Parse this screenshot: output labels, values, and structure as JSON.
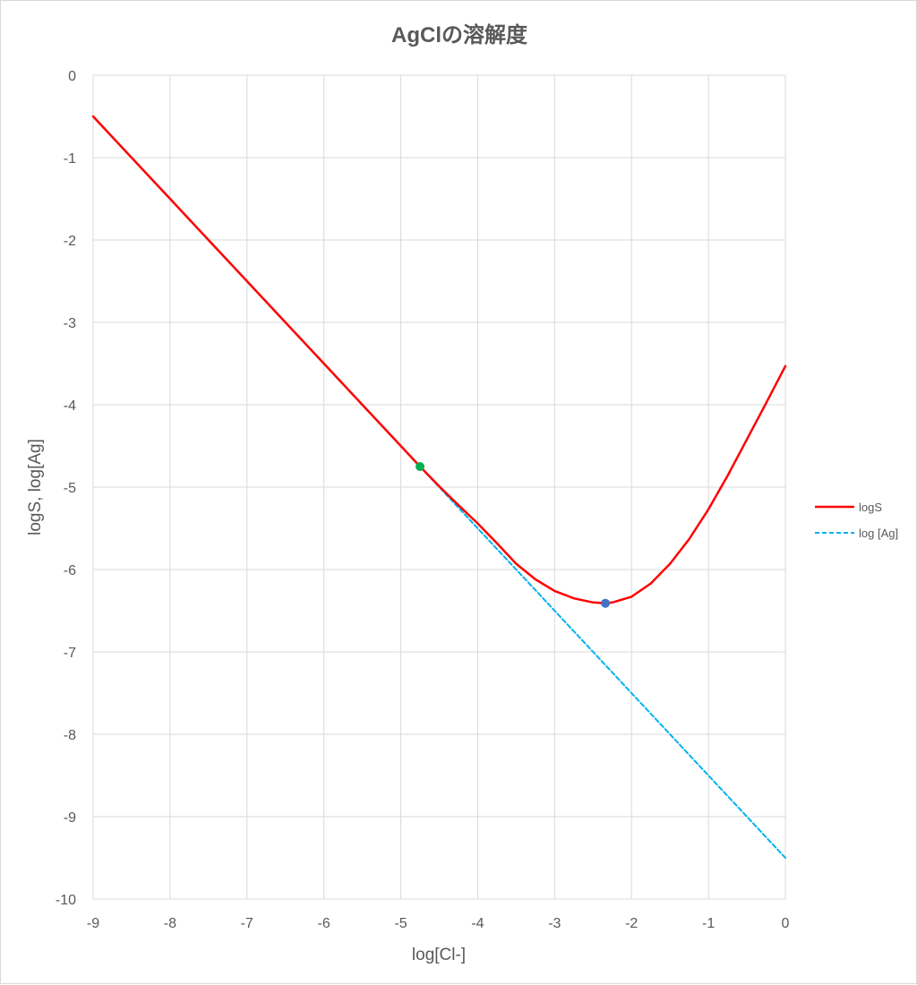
{
  "chart_data": {
    "type": "line",
    "title": "AgClの溶解度",
    "xlabel": "log[Cl-]",
    "ylabel": "logS, log[Ag]",
    "xlim": [
      -9,
      0
    ],
    "ylim": [
      -10,
      0
    ],
    "x_ticks": [
      -9,
      -8,
      -7,
      -6,
      -5,
      -4,
      -3,
      -2,
      -1,
      0
    ],
    "y_ticks": [
      0,
      -1,
      -2,
      -3,
      -4,
      -5,
      -6,
      -7,
      -8,
      -9,
      -10
    ],
    "grid": true,
    "legend_position": "right",
    "x": [
      -9,
      -8.5,
      -8,
      -7.5,
      -7,
      -6.5,
      -6,
      -5.5,
      -5,
      -4.75,
      -4.5,
      -4.25,
      -4,
      -3.75,
      -3.5,
      -3.25,
      -3,
      -2.75,
      -2.5,
      -2.34,
      -2.25,
      -2,
      -1.75,
      -1.5,
      -1.25,
      -1,
      -0.75,
      -0.5,
      -0.25,
      0
    ],
    "series": [
      {
        "name": "logS",
        "color": "#ff0000",
        "dash": "solid",
        "values": [
          -0.5,
          -1.0,
          -1.5,
          -2.0,
          -2.5,
          -3.0,
          -3.5,
          -4.0,
          -4.5,
          -4.75,
          -4.99,
          -5.22,
          -5.44,
          -5.68,
          -5.93,
          -6.12,
          -6.26,
          -6.35,
          -6.4,
          -6.41,
          -6.4,
          -6.33,
          -6.17,
          -5.93,
          -5.63,
          -5.27,
          -4.86,
          -4.42,
          -3.98,
          -3.53
        ]
      },
      {
        "name": "log [Ag]",
        "color": "#00b0f0",
        "dash": "dashed",
        "values": [
          -0.5,
          -1.0,
          -1.5,
          -2.0,
          -2.5,
          -3.0,
          -3.5,
          -4.0,
          -4.5,
          -4.75,
          -5.0,
          -5.25,
          -5.5,
          -5.75,
          -6.0,
          -6.25,
          -6.5,
          -6.75,
          -7.0,
          -7.16,
          -7.25,
          -7.5,
          -7.75,
          -8.0,
          -8.25,
          -8.5,
          -8.75,
          -9.0,
          -9.25,
          -9.5
        ]
      }
    ],
    "markers": [
      {
        "x": -4.75,
        "y": -4.75,
        "color": "#00b050"
      },
      {
        "x": -2.34,
        "y": -6.41,
        "color": "#4472c4"
      }
    ]
  }
}
